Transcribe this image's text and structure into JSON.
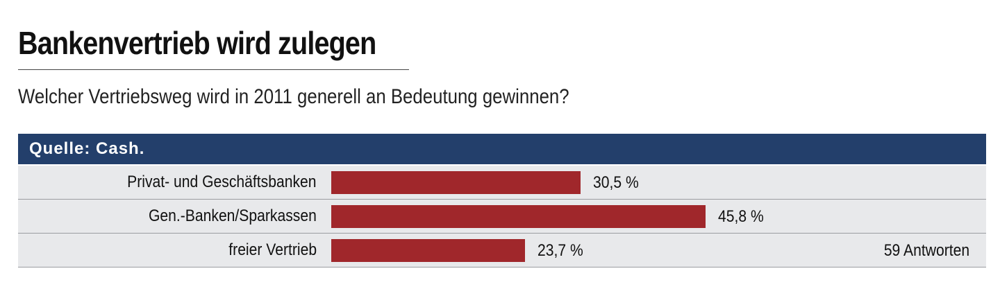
{
  "chart_data": {
    "type": "bar",
    "orientation": "horizontal",
    "title": "Bankenvertrieb wird zulegen",
    "subtitle": "Welcher Vertriebsweg wird in 2011 generell an Bedeutung gewinnen?",
    "source": "Quelle: Cash.",
    "categories": [
      "Privat- und Geschäftsbanken",
      "Gen.-Banken/Sparkassen",
      "freier Vertrieb"
    ],
    "values": [
      30.5,
      45.8,
      23.7
    ],
    "value_labels": [
      "30,5 %",
      "45,8 %",
      "23,7 %"
    ],
    "note": "59 Antworten",
    "xlim": [
      0,
      100
    ],
    "colors": {
      "bar": "#a0272b",
      "header": "#233f6b",
      "row_background": "#e8e9eb"
    }
  }
}
